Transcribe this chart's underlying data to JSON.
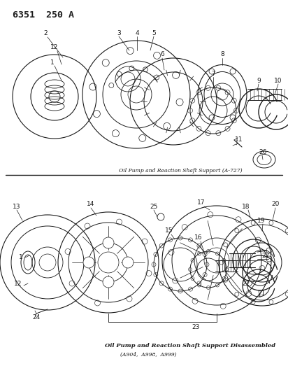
{
  "title": "6351  250 A",
  "background_color": "#ffffff",
  "line_color": "#1a1a1a",
  "caption1": "Oil Pump and Reaction Shaft Support (A-727)",
  "caption2": "Oil Pump and Reaction Shaft Support Disassembled",
  "caption3": "(A904,  A998,  A999)",
  "fig_width": 4.12,
  "fig_height": 5.33,
  "dpi": 100
}
